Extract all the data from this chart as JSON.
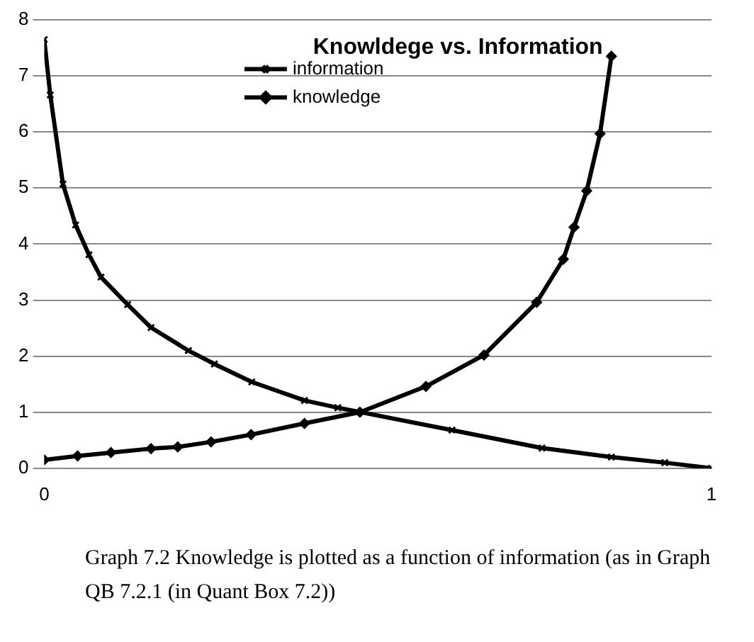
{
  "chart_data": {
    "type": "line",
    "title": "Knowldege vs. Information",
    "xlim": [
      0,
      1
    ],
    "xticks": [
      0,
      1
    ],
    "ylim": [
      0,
      8
    ],
    "yticks": [
      0,
      1,
      2,
      3,
      4,
      5,
      6,
      7,
      8
    ],
    "grid": "y",
    "legend": "top",
    "line_style": "solid",
    "series": [
      {
        "name": "information",
        "color": "#000000",
        "marker": "cross",
        "x": [
          0,
          0.009,
          0.028,
          0.047,
          0.067,
          0.085,
          0.125,
          0.16,
          0.216,
          0.255,
          0.311,
          0.39,
          0.44,
          0.611,
          0.746,
          0.85,
          0.93,
          1
        ],
        "values": [
          7.65,
          6.66,
          5.07,
          4.34,
          3.81,
          3.41,
          2.92,
          2.51,
          2.1,
          1.86,
          1.54,
          1.21,
          1.08,
          0.68,
          0.36,
          0.2,
          0.1,
          0
        ]
      },
      {
        "name": "knowledge",
        "color": "#000000",
        "marker": "diamond",
        "x": [
          0,
          0.05,
          0.1,
          0.16,
          0.2,
          0.25,
          0.31,
          0.39,
          0.473,
          0.572,
          0.659,
          0.738,
          0.778,
          0.794,
          0.813,
          0.833,
          0.85
        ],
        "values": [
          0.15,
          0.22,
          0.28,
          0.35,
          0.38,
          0.47,
          0.6,
          0.8,
          1.0,
          1.46,
          2.02,
          2.96,
          3.73,
          4.3,
          4.95,
          5.97,
          7.35
        ]
      }
    ],
    "annotations": [
      "Graph 7.2  Knowledge is plotted as a function of information (as in Graph QB 7.2.1 (in Quant Box 7.2))"
    ]
  }
}
